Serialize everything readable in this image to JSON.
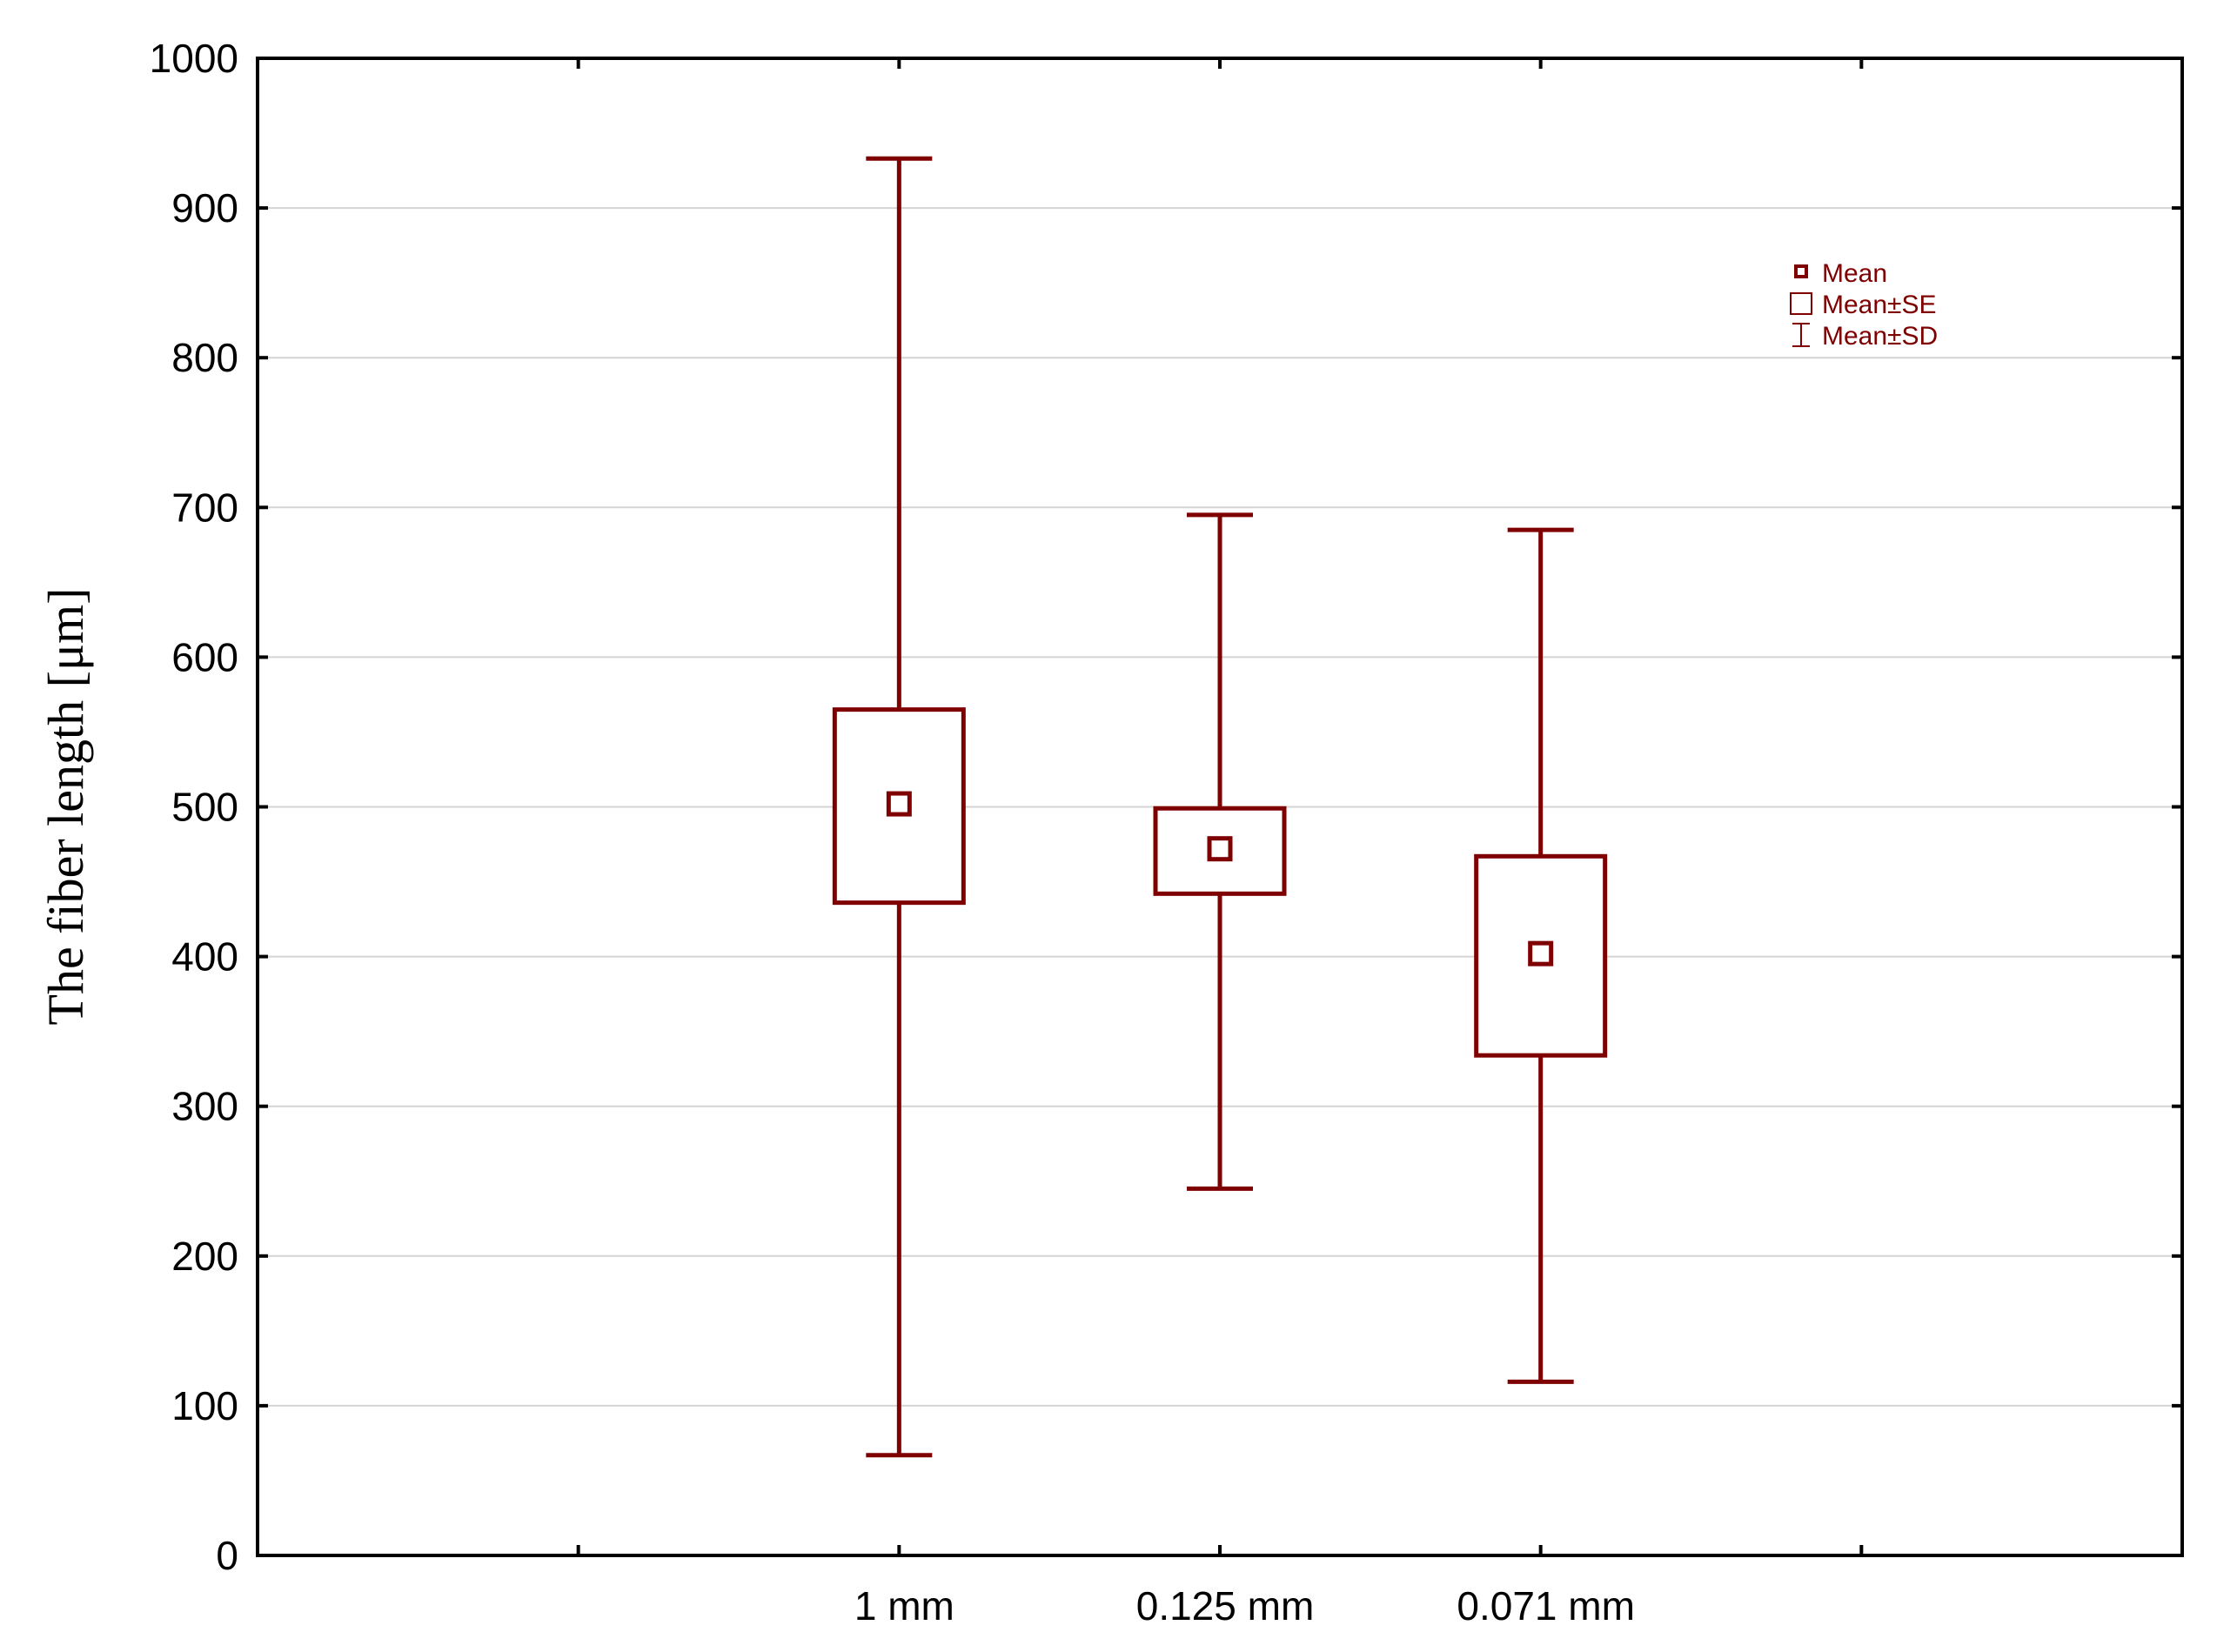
{
  "chart_data": {
    "type": "box",
    "title": "",
    "xlabel": "",
    "ylabel": "The fiber length  [μm]",
    "ylim": [
      0,
      1000
    ],
    "yticks": [
      0,
      100,
      200,
      300,
      400,
      500,
      600,
      700,
      800,
      900,
      1000
    ],
    "x_slots": 7,
    "categories": [
      {
        "label": "1 mm",
        "slot": 2,
        "mean": 502,
        "se_low": 436,
        "se_high": 565,
        "sd_low": 67,
        "sd_high": 933
      },
      {
        "label": "0.125 mm",
        "slot": 3,
        "mean": 472,
        "se_low": 442,
        "se_high": 499,
        "sd_low": 245,
        "sd_high": 695
      },
      {
        "label": "0.071 mm",
        "slot": 4,
        "mean": 402,
        "se_low": 334,
        "se_high": 467,
        "sd_low": 116,
        "sd_high": 685
      }
    ],
    "legend": {
      "placement": "top-right",
      "entries": [
        "Mean",
        "Mean±SE",
        "Mean±SD"
      ]
    },
    "grid": true,
    "color": "#7f0000"
  }
}
